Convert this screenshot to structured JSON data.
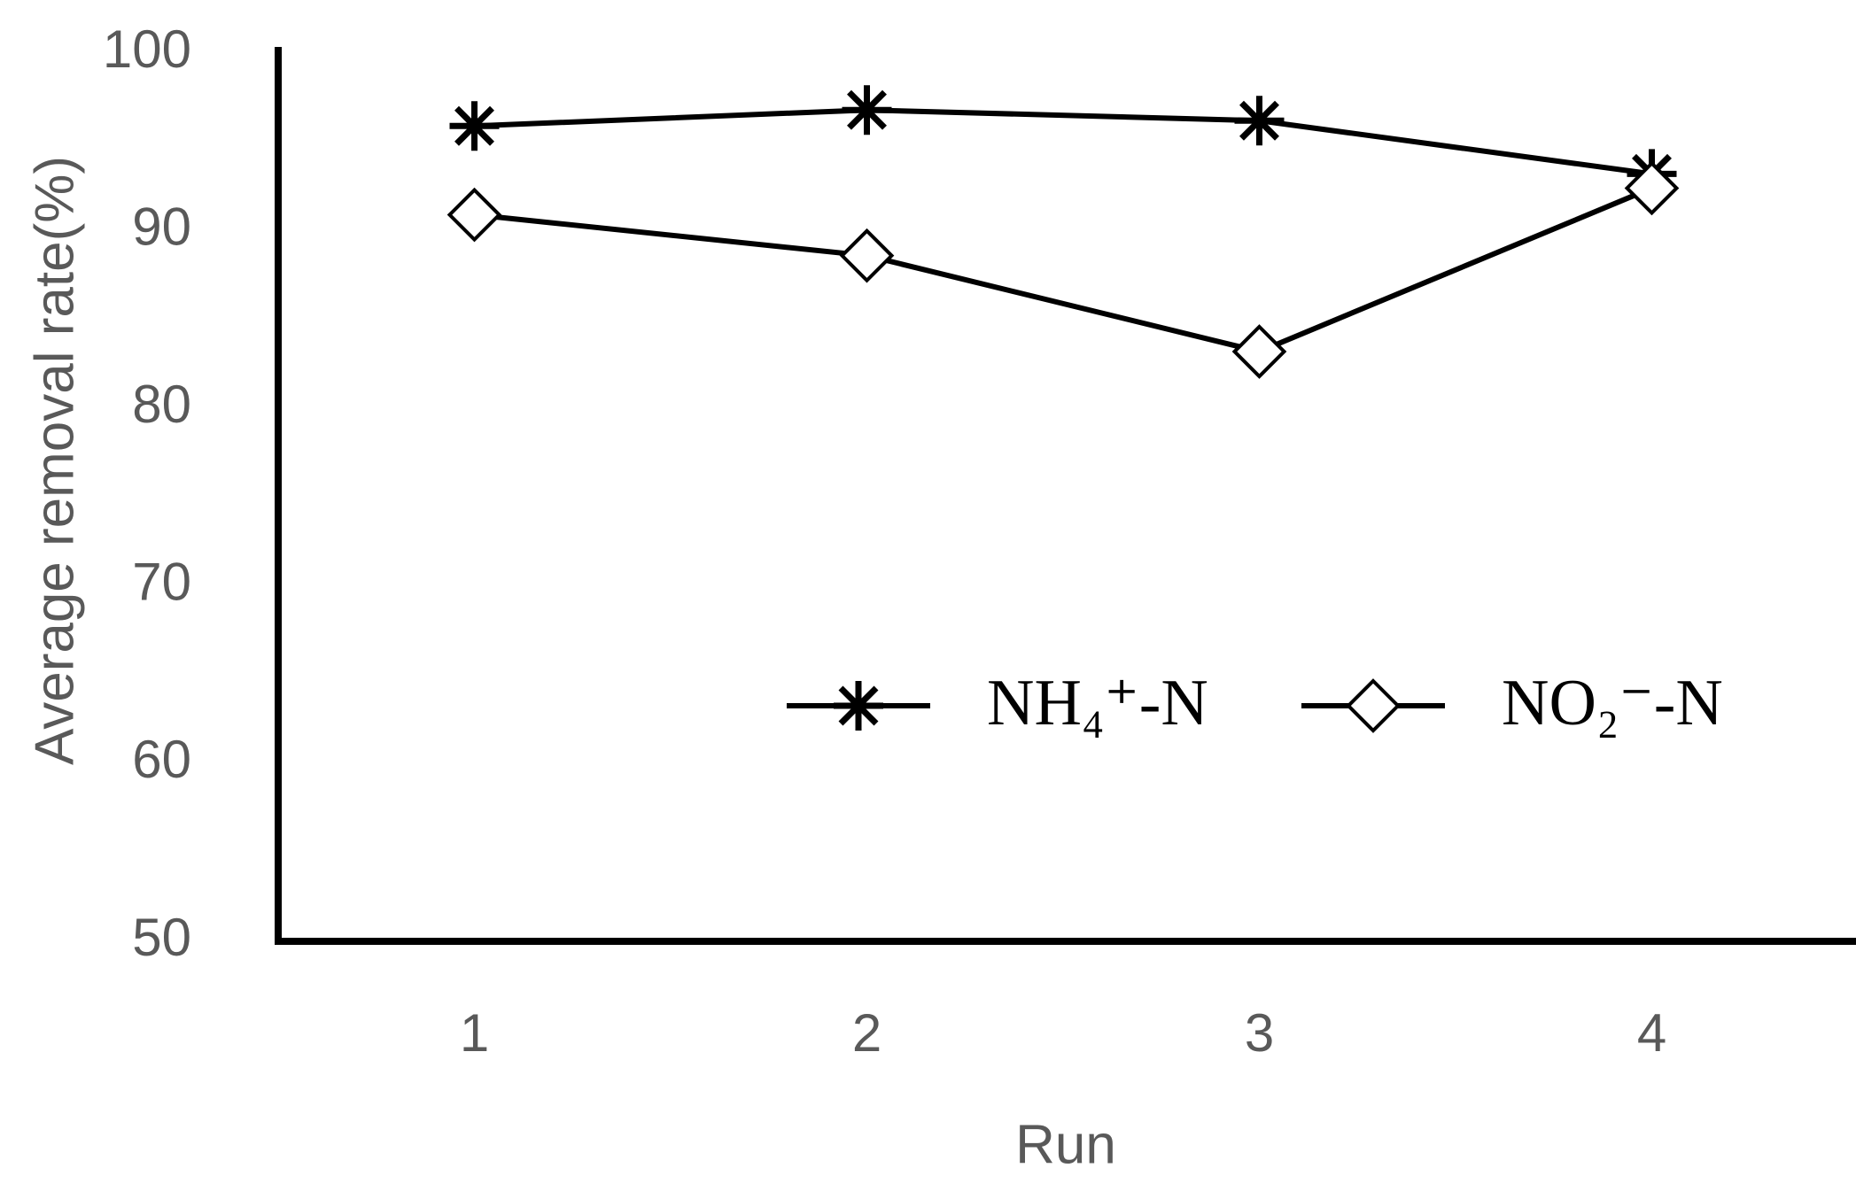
{
  "chart_data": {
    "type": "line",
    "x_label": "Run",
    "y_label": "Average removal rate(%)",
    "categories": [
      "1",
      "2",
      "3",
      "4"
    ],
    "series": [
      {
        "name": "NH₄⁺-N",
        "color": "#000000",
        "marker": "asterisk",
        "values": [
          95.9,
          96.8,
          96.2,
          93.2
        ]
      },
      {
        "name": "NO₂⁻-N",
        "color": "#000000",
        "marker": "diamond",
        "values": [
          90.9,
          88.6,
          83.2,
          92.4
        ]
      }
    ],
    "ylim": [
      50,
      100
    ],
    "yticks": [
      50,
      60,
      70,
      80,
      90,
      100
    ],
    "grid": false
  }
}
